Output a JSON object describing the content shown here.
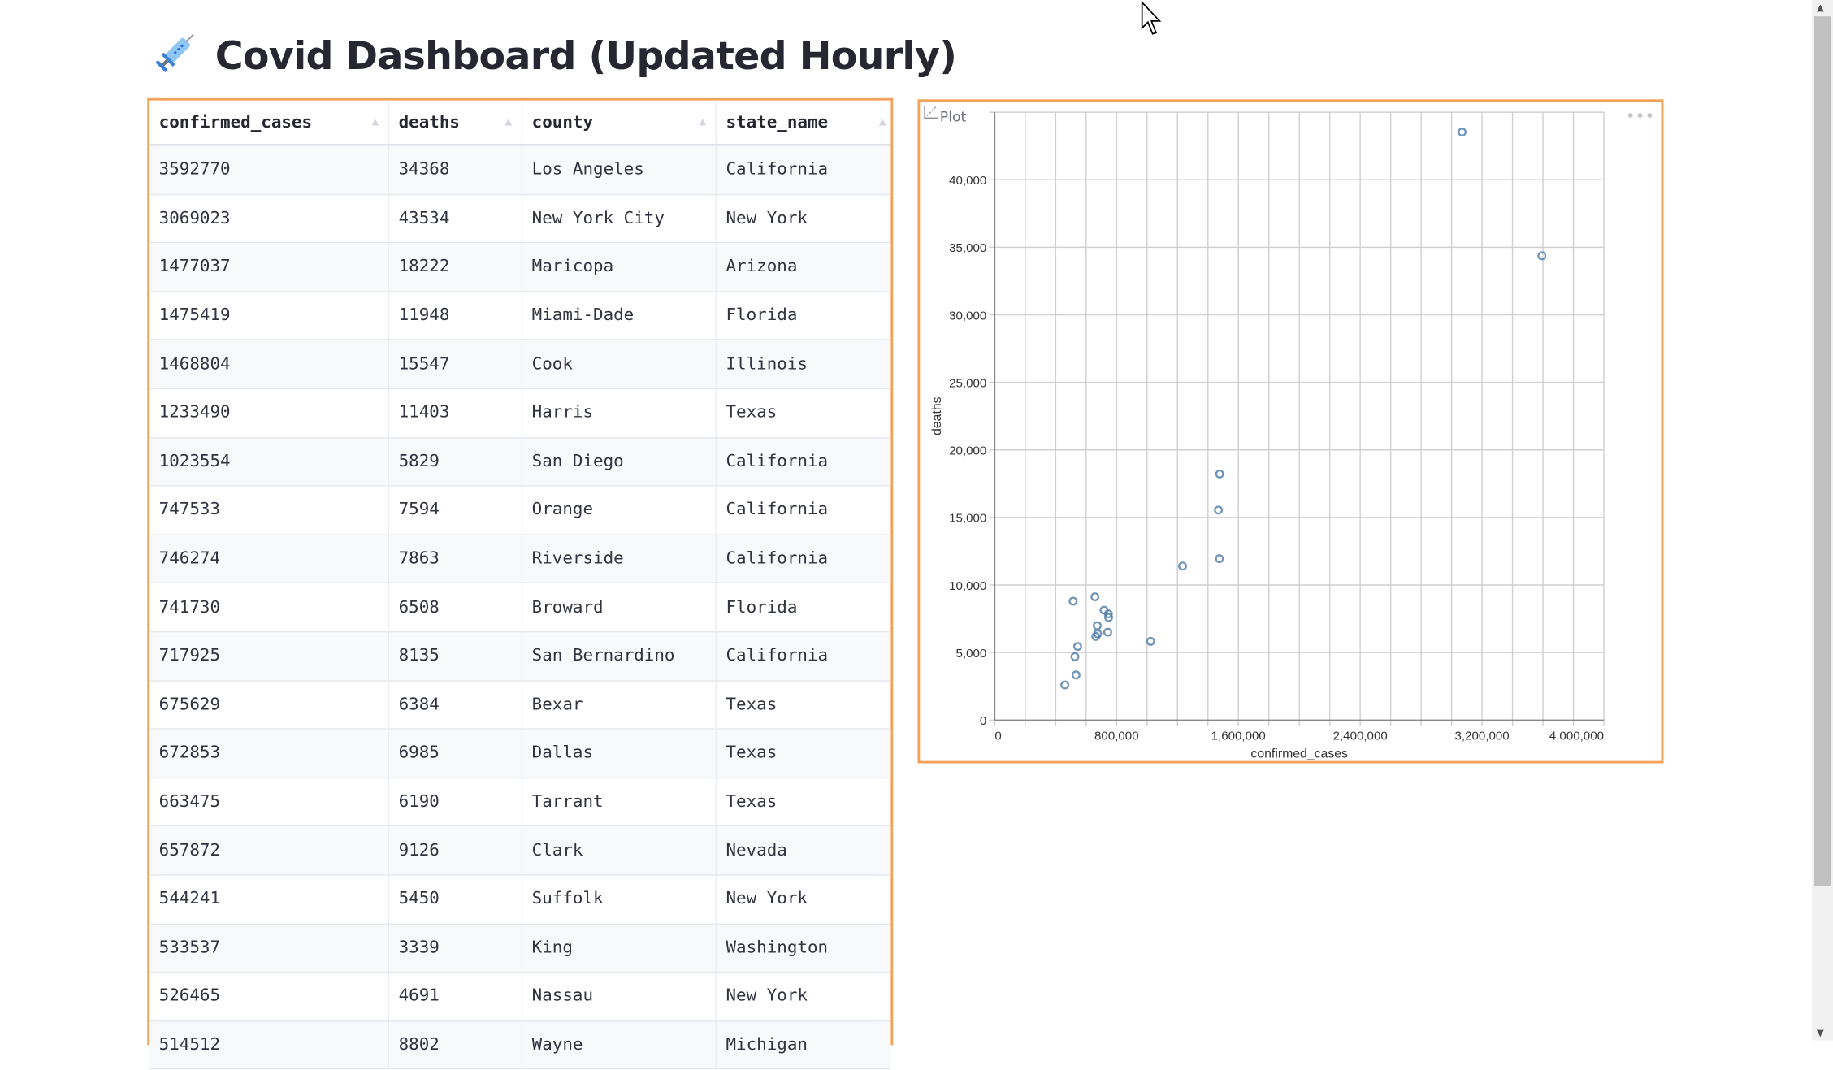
{
  "title": {
    "icon": "syringe-icon",
    "text": "Covid Dashboard (Updated Hourly)"
  },
  "table": {
    "columns": [
      "confirmed_cases",
      "deaths",
      "county",
      "state_name"
    ],
    "rows": [
      [
        "3592770",
        "34368",
        "Los Angeles",
        "California"
      ],
      [
        "3069023",
        "43534",
        "New York City",
        "New York"
      ],
      [
        "1477037",
        "18222",
        "Maricopa",
        "Arizona"
      ],
      [
        "1475419",
        "11948",
        "Miami-Dade",
        "Florida"
      ],
      [
        "1468804",
        "15547",
        "Cook",
        "Illinois"
      ],
      [
        "1233490",
        "11403",
        "Harris",
        "Texas"
      ],
      [
        "1023554",
        "5829",
        "San Diego",
        "California"
      ],
      [
        "747533",
        "7594",
        "Orange",
        "California"
      ],
      [
        "746274",
        "7863",
        "Riverside",
        "California"
      ],
      [
        "741730",
        "6508",
        "Broward",
        "Florida"
      ],
      [
        "717925",
        "8135",
        "San Bernardino",
        "California"
      ],
      [
        "675629",
        "6384",
        "Bexar",
        "Texas"
      ],
      [
        "672853",
        "6985",
        "Dallas",
        "Texas"
      ],
      [
        "663475",
        "6190",
        "Tarrant",
        "Texas"
      ],
      [
        "657872",
        "9126",
        "Clark",
        "Nevada"
      ],
      [
        "544241",
        "5450",
        "Suffolk",
        "New York"
      ],
      [
        "533537",
        "3339",
        "King",
        "Washington"
      ],
      [
        "526465",
        "4691",
        "Nassau",
        "New York"
      ],
      [
        "514512",
        "8802",
        "Wayne",
        "Michigan"
      ]
    ]
  },
  "plot": {
    "badge_label": "Plot",
    "badge_icon": "scatter-chart-icon",
    "menu_icon": "more-horizontal-icon"
  },
  "chart_data": {
    "type": "scatter",
    "xlabel": "confirmed_cases",
    "ylabel": "deaths",
    "xlim": [
      0,
      4000000
    ],
    "ylim": [
      0,
      45000
    ],
    "grid": true,
    "x_ticks": [
      "0",
      "800,000",
      "1,600,000",
      "2,400,000",
      "3,200,000",
      "4,000,000"
    ],
    "y_ticks": [
      "0",
      "5,000",
      "10,000",
      "15,000",
      "20,000",
      "25,000",
      "30,000",
      "35,000",
      "40,000"
    ],
    "x": [
      3592770,
      3069023,
      1477037,
      1475419,
      1468804,
      1233490,
      1023554,
      747533,
      746274,
      741730,
      717925,
      675629,
      672853,
      663475,
      657872,
      544241,
      533537,
      526465,
      514512,
      460000
    ],
    "y": [
      34368,
      43534,
      18222,
      11948,
      15547,
      11403,
      5829,
      7594,
      7863,
      6508,
      8135,
      6384,
      6985,
      6190,
      9126,
      5450,
      3339,
      4691,
      8802,
      2600
    ],
    "point_color": "#4c78a8"
  },
  "colors": {
    "focus_border": "#f4a259"
  }
}
